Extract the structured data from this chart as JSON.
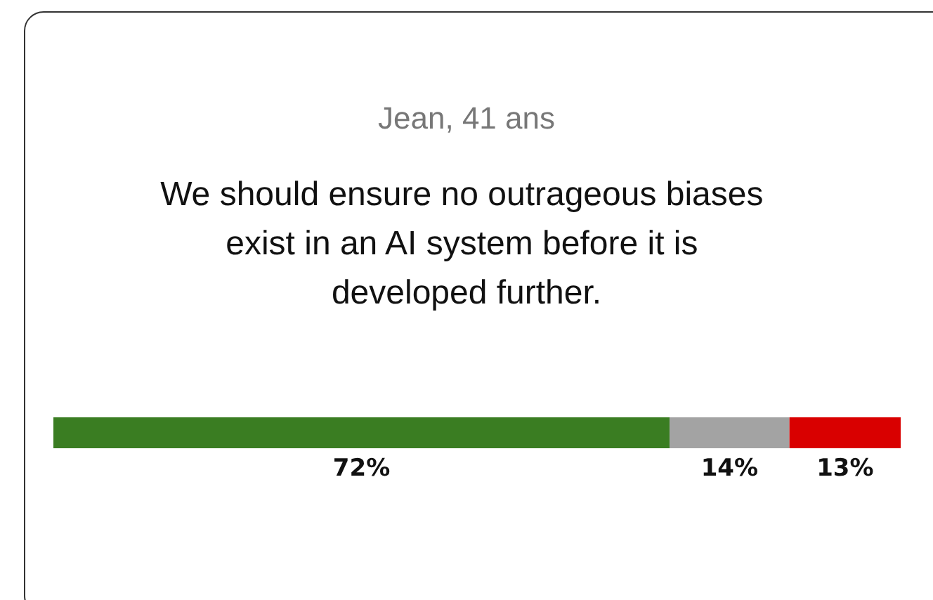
{
  "chart_data": {
    "type": "bar",
    "orientation": "horizontal",
    "stacked": true,
    "title": "Jean, 41 ans",
    "subtitle": "We should ensure no outrageous biases exist in an AI system before it is developed further.",
    "categories": [
      null
    ],
    "tick_labels": false,
    "series": [
      {
        "color": "#3a7d22",
        "values": [
          72
        ],
        "value_labels": [
          "72%"
        ]
      },
      {
        "color": "#a3a3a3",
        "values": [
          14
        ],
        "value_labels": [
          "14%"
        ]
      },
      {
        "color": "#d90000",
        "values": [
          13
        ],
        "value_labels": [
          "13%"
        ]
      }
    ]
  }
}
